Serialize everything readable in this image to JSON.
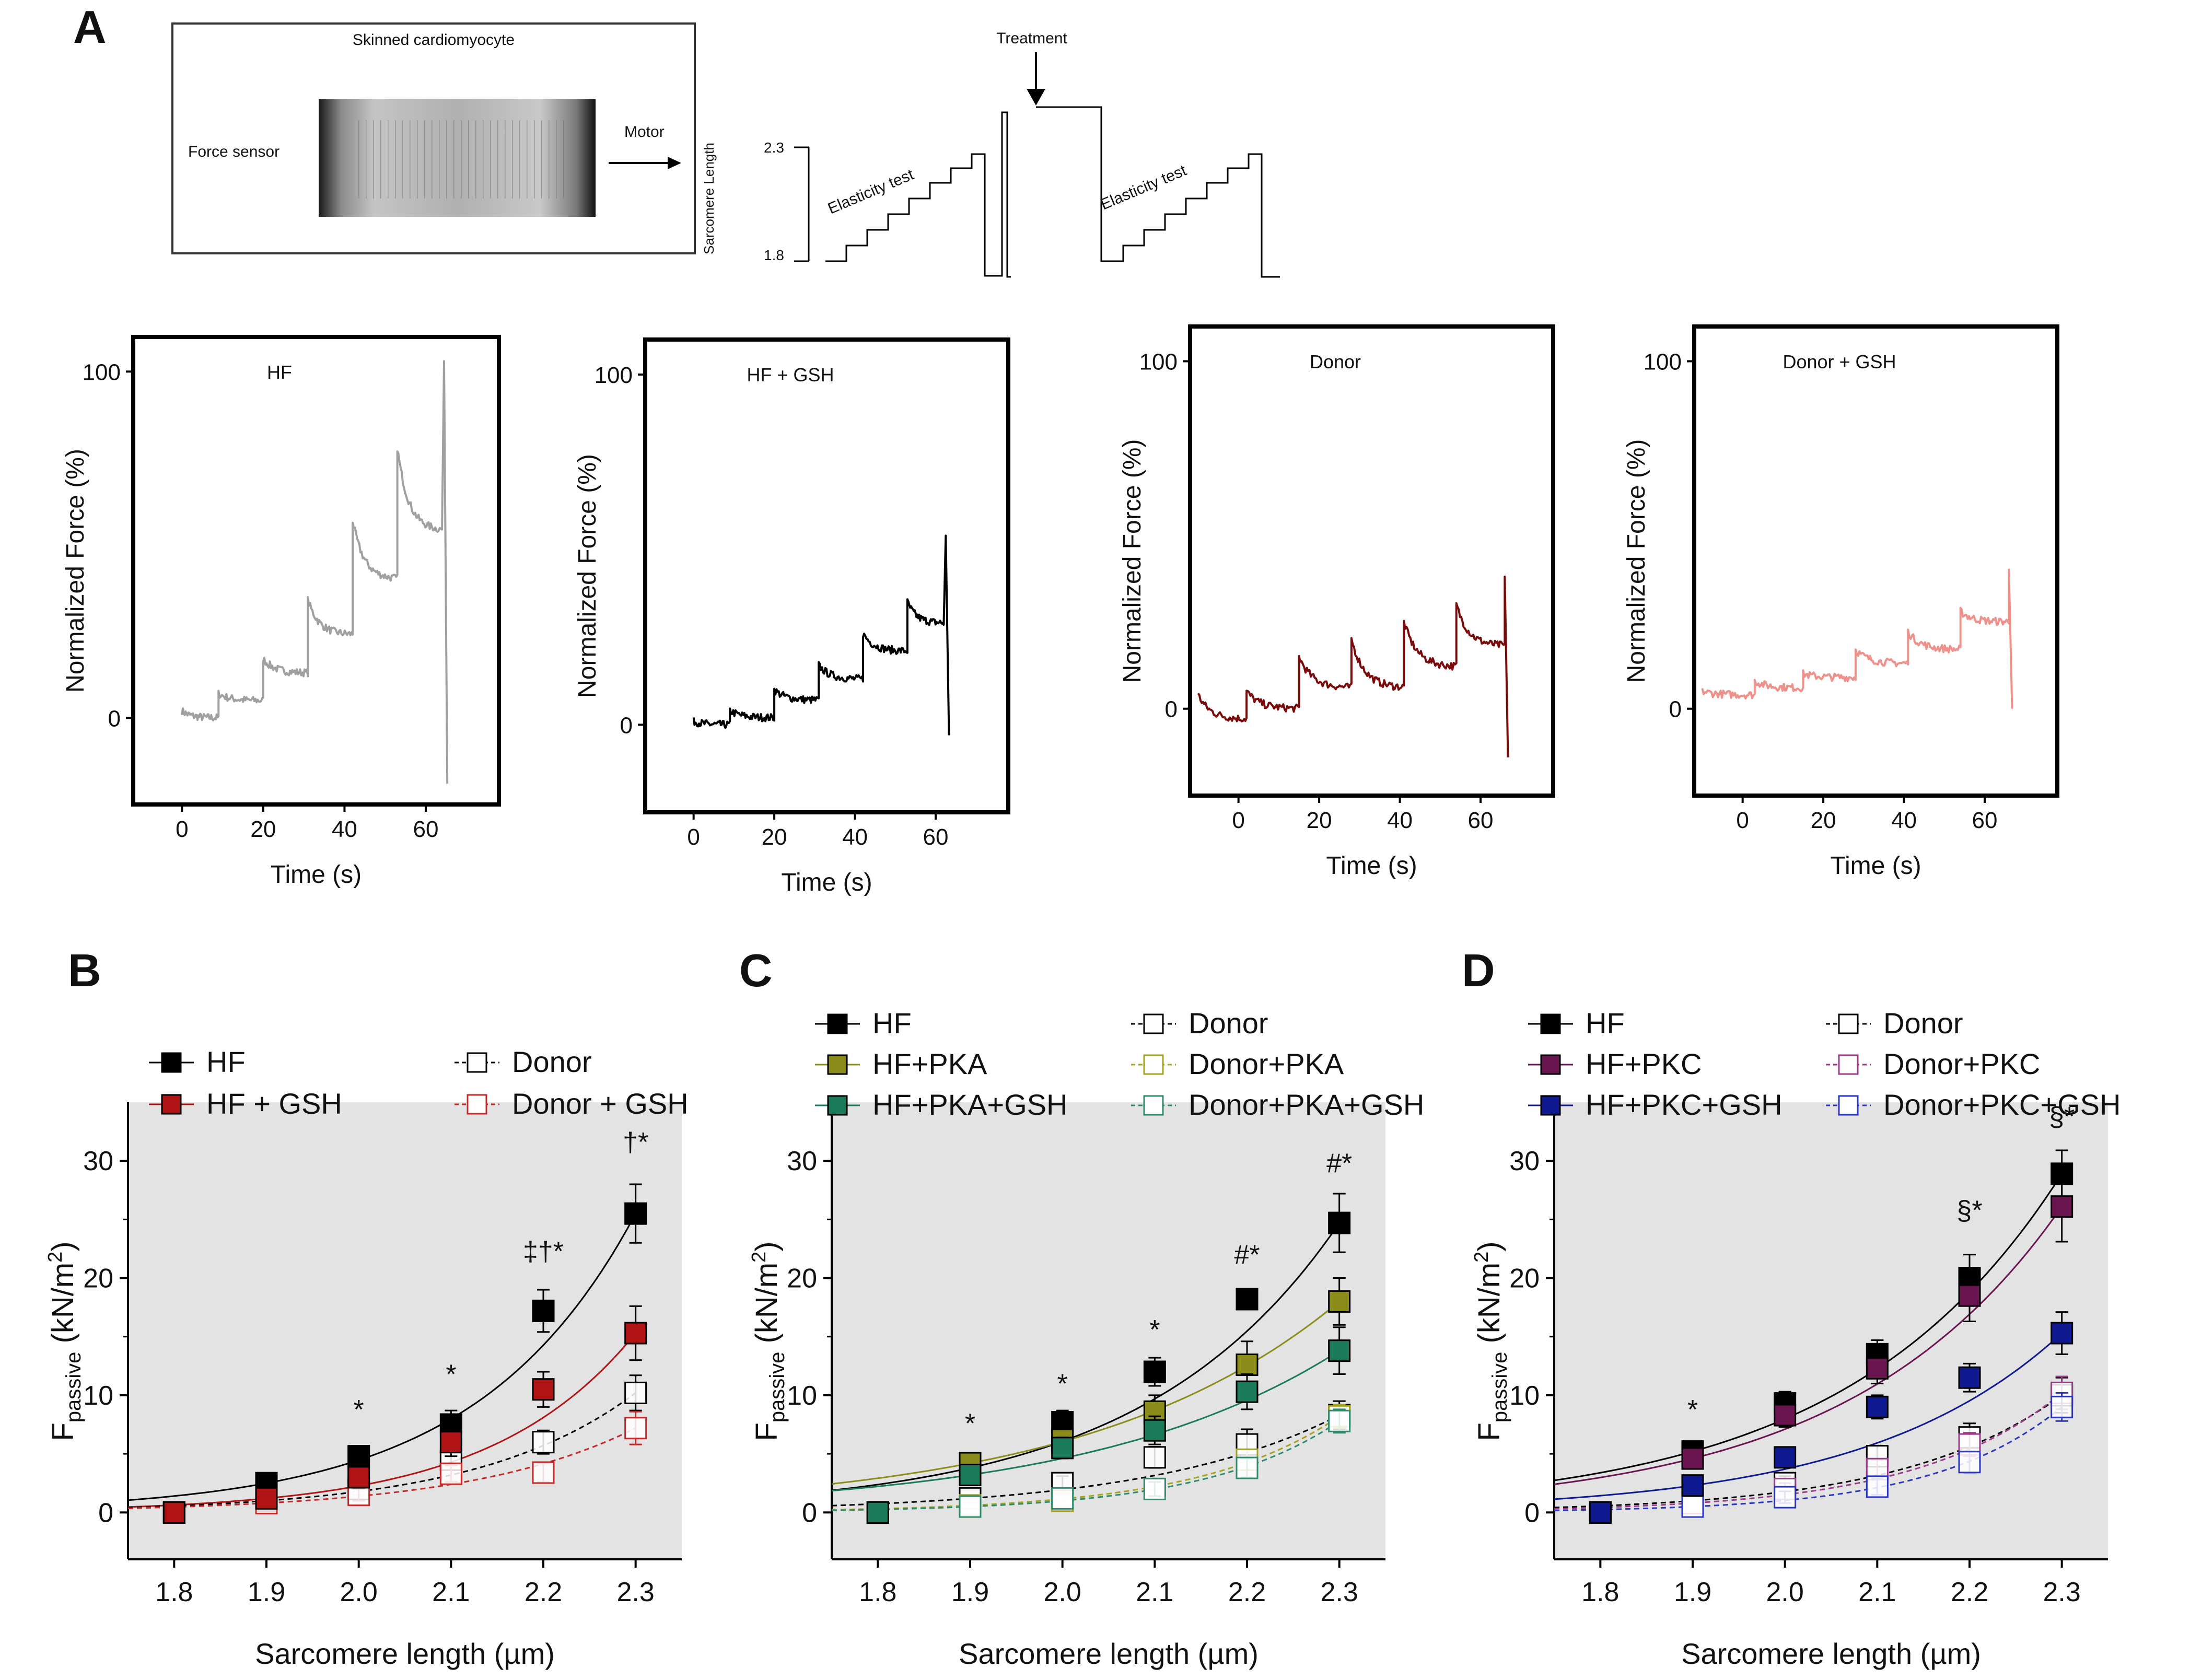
{
  "figure": {
    "panel_A": {
      "label": "A",
      "photo_title": "Skinned cardiomyocyte",
      "force_sensor": "Force sensor",
      "motor": "Motor",
      "treatment": "Treatment",
      "protocol_y_top": "2.3",
      "protocol_y_bottom": "1.8",
      "protocol_axis_label": "Sarcomere Length",
      "elasticity_test": "Elasticity test"
    },
    "trace_ylabel": "Normalized Force (%)",
    "trace_xlabel": "Time (s)",
    "curve_xlabel": "Sarcomere length (µm)",
    "curve_ylabel_main": "F",
    "curve_ylabel_sub": "passive",
    "curve_ylabel_unit": " (kN/m",
    "curve_ylabel_sup": "2",
    "curve_ylabel_close": ")"
  },
  "chart_data": [
    {
      "type": "line",
      "panel": "A",
      "title": "HF",
      "color": "#a0a0a0",
      "xticks": [
        "0",
        "20",
        "40",
        "60"
      ],
      "yticks": [
        "0",
        "100"
      ],
      "xlim": [
        -12,
        78
      ],
      "ylim": [
        -25,
        110
      ],
      "steps": [
        {
          "t0": 0,
          "t1": 9,
          "y0": 2,
          "y1": 0
        },
        {
          "t0": 9,
          "t1": 20,
          "y0": 7,
          "y1": 5
        },
        {
          "t0": 20,
          "t1": 31,
          "y0": 17,
          "y1": 13
        },
        {
          "t0": 31,
          "t1": 42,
          "y0": 34,
          "y1": 24
        },
        {
          "t0": 42,
          "t1": 53,
          "y0": 57,
          "y1": 40
        },
        {
          "t0": 53,
          "t1": 64,
          "y0": 78,
          "y1": 54
        }
      ],
      "spike": {
        "t": 64.5,
        "peak": 103,
        "trough": -19
      }
    },
    {
      "type": "line",
      "panel": "A",
      "title": "HF + GSH",
      "color": "#000000",
      "xticks": [
        "0",
        "20",
        "40",
        "60"
      ],
      "yticks": [
        "0",
        "100"
      ],
      "xlim": [
        -12,
        78
      ],
      "ylim": [
        -25,
        110
      ],
      "steps": [
        {
          "t0": 0,
          "t1": 9,
          "y0": 1,
          "y1": 0
        },
        {
          "t0": 9,
          "t1": 20,
          "y0": 4,
          "y1": 2
        },
        {
          "t0": 20,
          "t1": 31,
          "y0": 10,
          "y1": 7
        },
        {
          "t0": 31,
          "t1": 42,
          "y0": 17,
          "y1": 13
        },
        {
          "t0": 42,
          "t1": 53,
          "y0": 26,
          "y1": 21
        },
        {
          "t0": 53,
          "t1": 62,
          "y0": 35,
          "y1": 29
        }
      ],
      "spike": {
        "t": 62.5,
        "peak": 54,
        "trough": -3
      }
    },
    {
      "type": "line",
      "panel": "A",
      "title": "Donor",
      "color": "#7b0a0a",
      "xticks": [
        "0",
        "20",
        "40",
        "60"
      ],
      "yticks": [
        "0",
        "100"
      ],
      "xlim": [
        -12,
        78
      ],
      "ylim": [
        -25,
        110
      ],
      "steps": [
        {
          "t0": -10,
          "t1": 2,
          "y0": 4,
          "y1": -3
        },
        {
          "t0": 2,
          "t1": 15,
          "y0": 5,
          "y1": 0
        },
        {
          "t0": 15,
          "t1": 28,
          "y0": 15,
          "y1": 6
        },
        {
          "t0": 28,
          "t1": 41,
          "y0": 20,
          "y1": 6
        },
        {
          "t0": 41,
          "t1": 54,
          "y0": 25,
          "y1": 12
        },
        {
          "t0": 54,
          "t1": 66,
          "y0": 30,
          "y1": 18
        }
      ],
      "spike": {
        "t": 66,
        "peak": 38,
        "trough": -14
      }
    },
    {
      "type": "line",
      "panel": "A",
      "title": "Donor + GSH",
      "color": "#f0908a",
      "xticks": [
        "0",
        "20",
        "40",
        "60"
      ],
      "yticks": [
        "0",
        "100"
      ],
      "xlim": [
        -12,
        78
      ],
      "ylim": [
        -25,
        110
      ],
      "steps": [
        {
          "t0": -10,
          "t1": 3,
          "y0": 5,
          "y1": 4
        },
        {
          "t0": 3,
          "t1": 15,
          "y0": 8,
          "y1": 6
        },
        {
          "t0": 15,
          "t1": 28,
          "y0": 10,
          "y1": 9
        },
        {
          "t0": 28,
          "t1": 41,
          "y0": 17,
          "y1": 13
        },
        {
          "t0": 41,
          "t1": 54,
          "y0": 22,
          "y1": 17
        },
        {
          "t0": 54,
          "t1": 66,
          "y0": 28,
          "y1": 25
        }
      ],
      "spike": {
        "t": 66,
        "peak": 40,
        "trough": 0
      }
    },
    {
      "type": "scatter",
      "panel": "B",
      "title": "B",
      "xlabel": "Sarcomere length (µm)",
      "ylabel": "F passive (kN/m2)",
      "x": [
        1.8,
        1.9,
        2.0,
        2.1,
        2.2,
        2.3
      ],
      "xticks": [
        "1.8",
        "1.9",
        "2.0",
        "2.1",
        "2.2",
        "2.3"
      ],
      "yticks": [
        "0",
        "10",
        "20",
        "30"
      ],
      "xlim": [
        1.75,
        2.35
      ],
      "ylim": [
        -4,
        35
      ],
      "series": [
        {
          "name": "HF",
          "color": "#000000",
          "filled": true,
          "dashed": false,
          "values": [
            0,
            2.5,
            4.8,
            7.5,
            17.2,
            25.5
          ],
          "errors": [
            0.3,
            0.6,
            0.8,
            1.2,
            1.8,
            2.5
          ]
        },
        {
          "name": "HF + GSH",
          "color": "#b01414",
          "filled": true,
          "dashed": false,
          "values": [
            0,
            1.2,
            3.0,
            6.0,
            10.5,
            15.3
          ],
          "errors": [
            0.3,
            0.6,
            0.9,
            1.2,
            1.5,
            2.3
          ]
        },
        {
          "name": "Donor",
          "color": "#000000",
          "filled": false,
          "dashed": true,
          "values": [
            0,
            1.0,
            2.0,
            4.5,
            6.0,
            10.2
          ],
          "errors": [
            0.3,
            0.3,
            0.5,
            0.8,
            1.0,
            1.5
          ]
        },
        {
          "name": "Donor + GSH",
          "color": "#c62828",
          "filled": false,
          "dashed": true,
          "values": [
            0,
            0.8,
            1.5,
            3.3,
            3.4,
            7.2
          ],
          "errors": [
            0.2,
            0.3,
            0.5,
            0.7,
            0.8,
            1.4
          ]
        }
      ],
      "annotations": [
        {
          "x": 2.0,
          "y": 8.0,
          "text": "*"
        },
        {
          "x": 2.1,
          "y": 11.0,
          "text": "*"
        },
        {
          "x": 2.2,
          "y": 21.5,
          "text": "‡†*"
        },
        {
          "x": 2.3,
          "y": 30.8,
          "text": "†*"
        }
      ]
    },
    {
      "type": "scatter",
      "panel": "C",
      "title": "C",
      "xlabel": "Sarcomere length (µm)",
      "ylabel": "F passive (kN/m2)",
      "x": [
        1.8,
        1.9,
        2.0,
        2.1,
        2.2,
        2.3
      ],
      "xticks": [
        "1.8",
        "1.9",
        "2.0",
        "2.1",
        "2.2",
        "2.3"
      ],
      "yticks": [
        "0",
        "10",
        "20",
        "30"
      ],
      "xlim": [
        1.75,
        2.35
      ],
      "ylim": [
        -4,
        35
      ],
      "series": [
        {
          "name": "HF",
          "color": "#000000",
          "filled": true,
          "dashed": false,
          "values": [
            0,
            3.8,
            7.7,
            12.0,
            18.2,
            24.7
          ],
          "errors": [
            0.3,
            0.6,
            1.0,
            1.2,
            0.8,
            2.5
          ]
        },
        {
          "name": "HF+PKA",
          "color": "#8c8c1a",
          "filled": true,
          "dashed": false,
          "values": [
            0,
            4.2,
            6.2,
            8.6,
            12.6,
            18.0
          ],
          "errors": [
            0.3,
            0.6,
            1.0,
            1.4,
            2.0,
            2.0
          ]
        },
        {
          "name": "HF+PKA+GSH",
          "color": "#1a7a5a",
          "filled": true,
          "dashed": false,
          "values": [
            0,
            3.2,
            5.5,
            7.0,
            10.3,
            13.8
          ],
          "errors": [
            0.3,
            0.6,
            0.9,
            1.2,
            1.5,
            2.0
          ]
        },
        {
          "name": "Donor",
          "color": "#000000",
          "filled": false,
          "dashed": true,
          "values": [
            0,
            1.2,
            2.5,
            4.7,
            5.8,
            8.3
          ],
          "errors": [
            0.3,
            0.4,
            0.6,
            0.9,
            1.3,
            1.2
          ]
        },
        {
          "name": "Donor+PKA",
          "color": "#a3a31f",
          "filled": false,
          "dashed": true,
          "values": [
            0,
            0.6,
            1.0,
            2.0,
            4.5,
            8.2
          ],
          "errors": [
            0.2,
            0.3,
            0.4,
            0.6,
            0.8,
            1.0
          ]
        },
        {
          "name": "Donor+PKA+GSH",
          "color": "#2e8b6e",
          "filled": false,
          "dashed": true,
          "values": [
            0,
            0.5,
            1.2,
            2.0,
            3.8,
            7.8
          ],
          "errors": [
            0.2,
            0.3,
            0.4,
            0.6,
            0.8,
            1.0
          ]
        }
      ],
      "annotations": [
        {
          "x": 1.9,
          "y": 6.8,
          "text": "*"
        },
        {
          "x": 2.0,
          "y": 10.2,
          "text": "*"
        },
        {
          "x": 2.1,
          "y": 14.8,
          "text": "*"
        },
        {
          "x": 2.2,
          "y": 21.2,
          "text": "#*"
        },
        {
          "x": 2.3,
          "y": 29.0,
          "text": "#*"
        }
      ]
    },
    {
      "type": "scatter",
      "panel": "D",
      "title": "D",
      "xlabel": "Sarcomere length (µm)",
      "ylabel": "F passive (kN/m2)",
      "x": [
        1.8,
        1.9,
        2.0,
        2.1,
        2.2,
        2.3
      ],
      "xticks": [
        "1.8",
        "1.9",
        "2.0",
        "2.1",
        "2.2",
        "2.3"
      ],
      "yticks": [
        "0",
        "10",
        "20",
        "30"
      ],
      "xlim": [
        1.75,
        2.35
      ],
      "ylim": [
        -4,
        35
      ],
      "series": [
        {
          "name": "HF",
          "color": "#000000",
          "filled": true,
          "dashed": false,
          "values": [
            0,
            5.2,
            9.3,
            13.5,
            20.0,
            28.9
          ],
          "errors": [
            0.3,
            0.8,
            1.0,
            1.2,
            2.0,
            2.0
          ]
        },
        {
          "name": "HF+PKC",
          "color": "#6a1450",
          "filled": true,
          "dashed": false,
          "values": [
            0,
            4.6,
            8.3,
            12.3,
            18.5,
            26.1
          ],
          "errors": [
            0.3,
            0.8,
            1.0,
            1.3,
            2.2,
            3.0
          ]
        },
        {
          "name": "HF+PKC+GSH",
          "color": "#101a90",
          "filled": true,
          "dashed": false,
          "values": [
            0,
            2.3,
            4.7,
            9.0,
            11.5,
            15.3
          ],
          "errors": [
            0.3,
            0.6,
            0.8,
            1.0,
            1.2,
            1.8
          ]
        },
        {
          "name": "Donor",
          "color": "#000000",
          "filled": false,
          "dashed": true,
          "values": [
            0,
            1.0,
            2.5,
            4.8,
            6.4,
            10.0
          ],
          "errors": [
            0.2,
            0.4,
            0.6,
            0.9,
            1.2,
            1.5
          ]
        },
        {
          "name": "Donor+PKC",
          "color": "#9b3a8a",
          "filled": false,
          "dashed": true,
          "values": [
            0,
            0.8,
            2.0,
            3.7,
            5.8,
            10.2
          ],
          "errors": [
            0.2,
            0.3,
            0.5,
            0.8,
            1.0,
            1.4
          ]
        },
        {
          "name": "Donor+PKC+GSH",
          "color": "#2a35c0",
          "filled": false,
          "dashed": true,
          "values": [
            0,
            0.5,
            1.3,
            2.2,
            4.3,
            9.0
          ],
          "errors": [
            0.2,
            0.3,
            0.5,
            0.7,
            0.9,
            1.2
          ]
        }
      ],
      "annotations": [
        {
          "x": 1.9,
          "y": 8.0,
          "text": "*"
        },
        {
          "x": 2.2,
          "y": 25.0,
          "text": "§*"
        },
        {
          "x": 2.3,
          "y": 33.0,
          "text": "§*"
        }
      ]
    }
  ]
}
